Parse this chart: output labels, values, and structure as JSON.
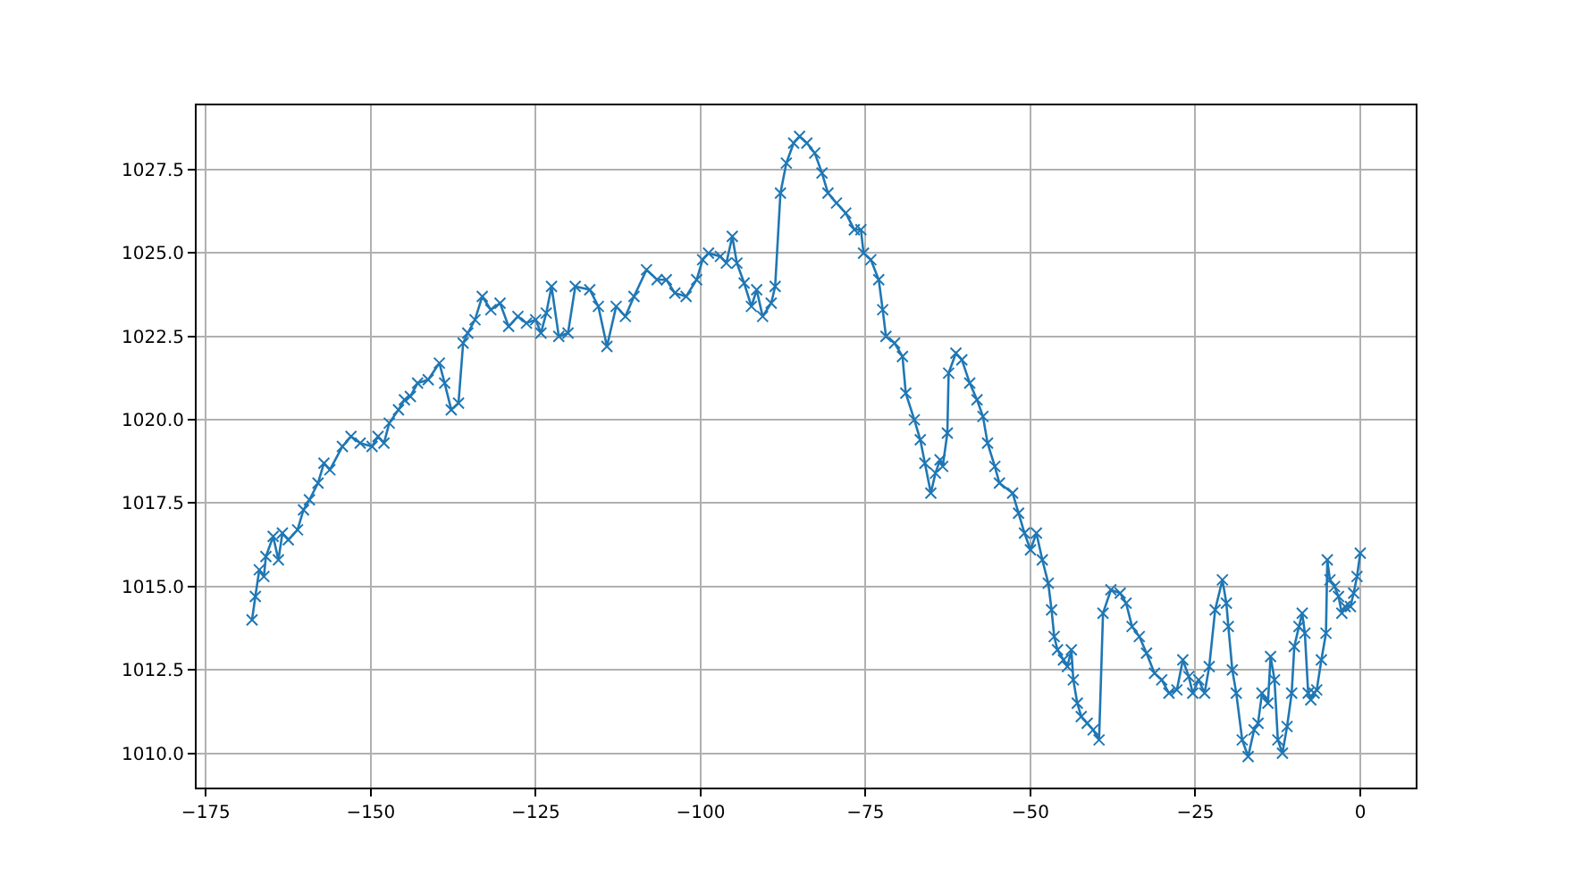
{
  "chart_data": {
    "type": "line",
    "x": [
      -168,
      -167.5,
      -166.9,
      -166.2,
      -165.9,
      -164.8,
      -164,
      -163.4,
      -162.5,
      -161.1,
      -160.2,
      -159.3,
      -158,
      -157.1,
      -156.2,
      -154.3,
      -153,
      -151.6,
      -149.8,
      -148.9,
      -148,
      -147.2,
      -145.8,
      -144.9,
      -144,
      -142.9,
      -141.3,
      -139.6,
      -138.8,
      -137.8,
      -136.7,
      -136,
      -135.3,
      -134.2,
      -133.1,
      -131.8,
      -130.4,
      -129.1,
      -127.7,
      -126.4,
      -125,
      -124.2,
      -123.4,
      -122.6,
      -121.5,
      -120.1,
      -119,
      -116.8,
      -115.5,
      -114.2,
      -112.8,
      -111.4,
      -110.1,
      -108.2,
      -106.6,
      -105.2,
      -103.9,
      -102.2,
      -100.6,
      -99.7,
      -98.8,
      -97,
      -96.1,
      -95.2,
      -94.5,
      -93.4,
      -92.3,
      -91.5,
      -90.6,
      -89.3,
      -88.7,
      -87.9,
      -87,
      -85.9,
      -85,
      -83.9,
      -82.7,
      -81.6,
      -80.7,
      -79.4,
      -78,
      -76.7,
      -75.7,
      -75.3,
      -74.2,
      -73,
      -72.4,
      -71.9,
      -70.6,
      -69.4,
      -68.9,
      -67.6,
      -66.7,
      -66,
      -65.1,
      -64.4,
      -63.7,
      -63.3,
      -62.6,
      -62.4,
      -61.3,
      -60.4,
      -59.2,
      -58.1,
      -57.2,
      -56.5,
      -55.4,
      -54.7,
      -52.7,
      -51.8,
      -50.9,
      -50,
      -49.1,
      -48.2,
      -47.3,
      -46.8,
      -46.4,
      -45.9,
      -45,
      -44.4,
      -43.8,
      -43.5,
      -42.9,
      -42.3,
      -41.4,
      -40.5,
      -39.6,
      -39,
      -37.8,
      -36.4,
      -35.5,
      -34.6,
      -33.5,
      -32.4,
      -31.2,
      -30.1,
      -29,
      -27.8,
      -26.9,
      -26,
      -25.4,
      -24.5,
      -23.6,
      -22.9,
      -22,
      -20.9,
      -20.3,
      -20,
      -19.4,
      -18.8,
      -17.9,
      -17,
      -16.1,
      -15.5,
      -14.9,
      -14,
      -13.6,
      -13,
      -12.5,
      -11.8,
      -11.1,
      -10.4,
      -10,
      -9.3,
      -8.8,
      -8.4,
      -7.9,
      -7.5,
      -7,
      -6.6,
      -5.9,
      -5.2,
      -5,
      -4.6,
      -3.9,
      -3.3,
      -2.8,
      -2.3,
      -1.5,
      -1,
      -0.5,
      0
    ],
    "series": [
      {
        "color": "#1f77b4",
        "values": [
          1014.0,
          1014.7,
          1015.5,
          1015.3,
          1015.9,
          1016.5,
          1015.8,
          1016.6,
          1016.4,
          1016.7,
          1017.3,
          1017.6,
          1018.1,
          1018.7,
          1018.5,
          1019.2,
          1019.5,
          1019.3,
          1019.2,
          1019.5,
          1019.3,
          1019.9,
          1020.3,
          1020.6,
          1020.7,
          1021.1,
          1021.2,
          1021.7,
          1021.1,
          1020.3,
          1020.5,
          1022.3,
          1022.6,
          1023.0,
          1023.7,
          1023.3,
          1023.5,
          1022.8,
          1023.1,
          1022.9,
          1023.0,
          1022.6,
          1023.2,
          1024.0,
          1022.5,
          1022.6,
          1024.0,
          1023.9,
          1023.4,
          1022.2,
          1023.4,
          1023.1,
          1023.7,
          1024.5,
          1024.2,
          1024.2,
          1023.8,
          1023.7,
          1024.2,
          1024.8,
          1025.0,
          1024.9,
          1024.7,
          1025.5,
          1024.7,
          1024.1,
          1023.4,
          1023.9,
          1023.1,
          1023.5,
          1024.0,
          1026.8,
          1027.7,
          1028.3,
          1028.5,
          1028.3,
          1028.0,
          1027.4,
          1026.8,
          1026.5,
          1026.2,
          1025.7,
          1025.7,
          1025.0,
          1024.8,
          1024.2,
          1023.3,
          1022.5,
          1022.3,
          1021.9,
          1020.8,
          1020.0,
          1019.4,
          1018.7,
          1017.8,
          1018.4,
          1018.8,
          1018.6,
          1019.6,
          1021.4,
          1022.0,
          1021.8,
          1021.1,
          1020.6,
          1020.1,
          1019.3,
          1018.6,
          1018.1,
          1017.8,
          1017.2,
          1016.6,
          1016.1,
          1016.6,
          1015.8,
          1015.1,
          1014.3,
          1013.5,
          1013.1,
          1012.8,
          1012.6,
          1013.1,
          1012.2,
          1011.5,
          1011.1,
          1010.9,
          1010.7,
          1010.4,
          1014.2,
          1014.9,
          1014.8,
          1014.5,
          1013.8,
          1013.5,
          1013.0,
          1012.4,
          1012.2,
          1011.8,
          1011.9,
          1012.8,
          1012.3,
          1011.8,
          1012.2,
          1011.8,
          1012.6,
          1014.3,
          1015.2,
          1014.5,
          1013.8,
          1012.5,
          1011.8,
          1010.4,
          1009.9,
          1010.7,
          1010.9,
          1011.8,
          1011.5,
          1012.9,
          1012.2,
          1010.4,
          1010.0,
          1010.8,
          1011.8,
          1013.2,
          1013.8,
          1014.2,
          1013.6,
          1011.8,
          1011.6,
          1011.8,
          1011.9,
          1012.8,
          1013.6,
          1015.8,
          1015.2,
          1015.0,
          1014.7,
          1014.2,
          1014.4,
          1014.4,
          1014.8,
          1015.3,
          1016.0
        ]
      }
    ],
    "xlim": [
      -176.4,
      8.4
    ],
    "ylim": [
      1008.97,
      1029.43
    ],
    "xticks": [
      {
        "value": -175,
        "label": "−175"
      },
      {
        "value": -150,
        "label": "−150"
      },
      {
        "value": -125,
        "label": "−125"
      },
      {
        "value": -100,
        "label": "−100"
      },
      {
        "value": -75,
        "label": "−75"
      },
      {
        "value": -50,
        "label": "−50"
      },
      {
        "value": -25,
        "label": "−25"
      },
      0
    ],
    "yticks": [
      {
        "value": 1010,
        "label": "1010.0"
      },
      {
        "value": 1012.5,
        "label": "1012.5"
      },
      {
        "value": 1015,
        "label": "1015.0"
      },
      {
        "value": 1017.5,
        "label": "1017.5"
      },
      {
        "value": 1020,
        "label": "1020.0"
      },
      {
        "value": 1022.5,
        "label": "1022.5"
      },
      {
        "value": 1025,
        "label": "1025.0"
      },
      {
        "value": 1027.5,
        "label": "1027.5"
      }
    ],
    "grid": true,
    "marker": "cross",
    "line_style": "solid"
  }
}
